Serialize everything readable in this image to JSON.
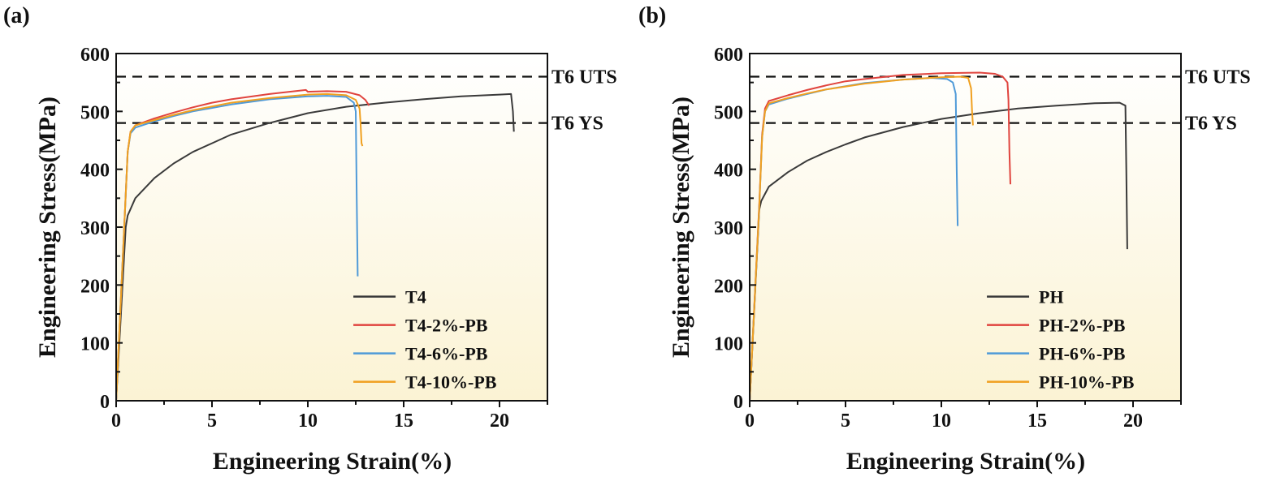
{
  "chart_data": [
    {
      "type": "line",
      "panel_label": "(a)",
      "xlabel": "Engineering Strain(%)",
      "ylabel": "Engineering Stress(MPa)",
      "xlim": [
        0,
        22.5
      ],
      "ylim": [
        0,
        600
      ],
      "xticks": [
        0,
        5,
        10,
        15,
        20
      ],
      "xtick_labels": [
        "0",
        "5",
        "10",
        "15",
        "20"
      ],
      "yticks": [
        0,
        100,
        200,
        300,
        400,
        500,
        600
      ],
      "ytick_labels": [
        "0",
        "100",
        "200",
        "300",
        "400",
        "500",
        "600"
      ],
      "grid": false,
      "legend_position": "bottom-right",
      "reference_lines": [
        {
          "label": "T6 UTS",
          "value": 560,
          "style": "dashed"
        },
        {
          "label": "T6 YS",
          "value": 480,
          "style": "dashed"
        }
      ],
      "series": [
        {
          "name": "T4",
          "color": "#3a3a3a",
          "x": [
            0,
            0.5,
            0.6,
            1,
            2,
            3,
            4,
            5,
            6,
            8,
            10,
            12,
            14,
            16,
            18,
            20,
            20.6,
            20.7,
            20.75
          ],
          "y": [
            0,
            300,
            320,
            350,
            385,
            410,
            430,
            445,
            460,
            480,
            497,
            508,
            515,
            521,
            526,
            529,
            530,
            500,
            465
          ]
        },
        {
          "name": "T4-2%-PB",
          "color": "#e0443e",
          "x": [
            0,
            0.45,
            0.6,
            0.75,
            1,
            2,
            3,
            4,
            5,
            6,
            8,
            9.9,
            10,
            11,
            12,
            12.7,
            13,
            13.2
          ],
          "y": [
            0,
            320,
            430,
            465,
            476,
            488,
            498,
            507,
            515,
            521,
            530,
            537,
            534,
            535,
            534,
            528,
            520,
            510
          ]
        },
        {
          "name": "T4-6%-PB",
          "color": "#4f9ad8",
          "x": [
            0,
            0.45,
            0.6,
            0.75,
            1,
            2,
            3,
            4,
            6,
            8,
            10,
            11,
            12,
            12.4,
            12.5,
            12.55,
            12.6
          ],
          "y": [
            0,
            320,
            430,
            462,
            472,
            483,
            492,
            500,
            512,
            521,
            526,
            527,
            525,
            515,
            500,
            350,
            215
          ]
        },
        {
          "name": "T4-10%-PB",
          "color": "#f0a020",
          "x": [
            0,
            0.45,
            0.6,
            0.75,
            1,
            2,
            3,
            4,
            6,
            8,
            10,
            11,
            12,
            12.5,
            12.7,
            12.75,
            12.8,
            12.85
          ],
          "y": [
            0,
            320,
            430,
            465,
            476,
            485,
            494,
            502,
            515,
            523,
            529,
            530,
            528,
            520,
            505,
            480,
            445,
            440
          ]
        }
      ]
    },
    {
      "type": "line",
      "panel_label": "(b)",
      "xlabel": "Engineering Strain(%)",
      "ylabel": "Engineering Stress(MPa)",
      "xlim": [
        0,
        22.5
      ],
      "ylim": [
        0,
        600
      ],
      "xticks": [
        0,
        5,
        10,
        15,
        20
      ],
      "xtick_labels": [
        "0",
        "5",
        "10",
        "15",
        "20"
      ],
      "yticks": [
        0,
        100,
        200,
        300,
        400,
        500,
        600
      ],
      "ytick_labels": [
        "0",
        "100",
        "200",
        "300",
        "400",
        "500",
        "600"
      ],
      "grid": false,
      "legend_position": "bottom-right",
      "reference_lines": [
        {
          "label": "T6 UTS",
          "value": 560,
          "style": "dashed"
        },
        {
          "label": "T6 YS",
          "value": 480,
          "style": "dashed"
        }
      ],
      "series": [
        {
          "name": "PH",
          "color": "#3a3a3a",
          "x": [
            0,
            0.5,
            0.6,
            1,
            2,
            3,
            4,
            5,
            6,
            8,
            10,
            12,
            14,
            16,
            18,
            19.3,
            19.6,
            19.65,
            19.7
          ],
          "y": [
            0,
            330,
            345,
            370,
            395,
            415,
            430,
            443,
            455,
            473,
            487,
            497,
            505,
            510,
            514,
            515,
            510,
            400,
            262
          ]
        },
        {
          "name": "PH-2%-PB",
          "color": "#e0443e",
          "x": [
            0,
            0.5,
            0.65,
            0.8,
            1,
            2,
            3,
            4,
            5,
            6,
            8,
            10,
            12,
            12.8,
            13.2,
            13.45,
            13.5,
            13.55,
            13.6
          ],
          "y": [
            0,
            340,
            460,
            505,
            518,
            528,
            537,
            545,
            552,
            556,
            563,
            566,
            567,
            565,
            560,
            550,
            520,
            430,
            374
          ]
        },
        {
          "name": "PH-6%-PB",
          "color": "#4f9ad8",
          "x": [
            0,
            0.5,
            0.65,
            0.8,
            1,
            2,
            3,
            4,
            6,
            8,
            9.5,
            10.3,
            10.6,
            10.75,
            10.8,
            10.85
          ],
          "y": [
            0,
            335,
            455,
            500,
            512,
            522,
            530,
            538,
            549,
            555,
            558,
            556,
            550,
            530,
            400,
            302
          ]
        },
        {
          "name": "PH-10%-PB",
          "color": "#f0a020",
          "x": [
            0,
            0.5,
            0.65,
            0.8,
            1,
            2,
            3,
            4,
            6,
            8,
            10,
            11,
            11.4,
            11.55,
            11.6,
            11.65
          ],
          "y": [
            0,
            335,
            455,
            500,
            514,
            523,
            531,
            538,
            548,
            555,
            559,
            560,
            558,
            540,
            500,
            476
          ]
        }
      ]
    }
  ]
}
